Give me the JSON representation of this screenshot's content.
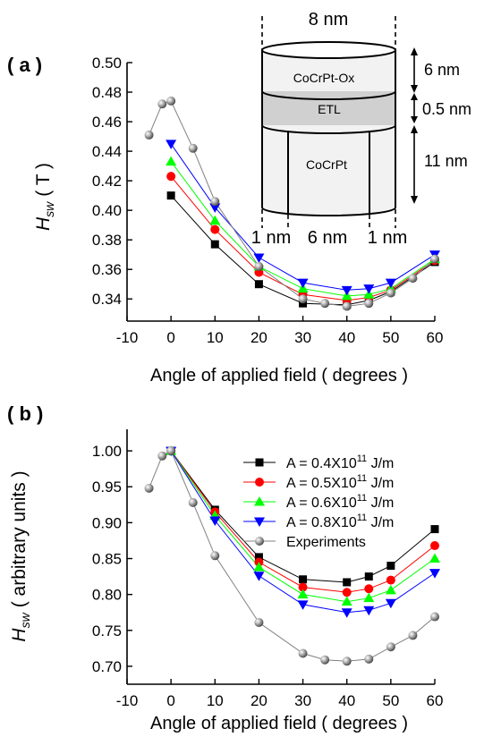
{
  "figure": {
    "panel_a_label": "( a )",
    "panel_b_label": "( b )"
  },
  "chart_data": [
    {
      "id": "a",
      "type": "line",
      "panel_label": "( a )",
      "ylabel_main": "H",
      "ylabel_sub": "sw",
      "ylabel_unit": "( T )",
      "xlabel": "Angle of applied field ( degrees )",
      "xlim": [
        -10,
        60
      ],
      "ylim": [
        0.325,
        0.5
      ],
      "xticks": [
        -10,
        0,
        10,
        20,
        30,
        40,
        50,
        60
      ],
      "yticks": [
        0.34,
        0.36,
        0.38,
        0.4,
        0.42,
        0.44,
        0.46,
        0.48,
        0.5
      ],
      "ytick_labels": [
        "0.34",
        "0.36",
        "0.38",
        "0.40",
        "0.42",
        "0.44",
        "0.46",
        "0.48",
        "0.50"
      ],
      "series": [
        {
          "marker": "square",
          "color": "#000000",
          "x": [
            0,
            10,
            20,
            30,
            40,
            45,
            50,
            60
          ],
          "y": [
            0.41,
            0.377,
            0.35,
            0.337,
            0.336,
            0.339,
            0.345,
            0.365
          ]
        },
        {
          "marker": "circle",
          "color": "#ff0000",
          "x": [
            0,
            10,
            20,
            30,
            40,
            45,
            50,
            60
          ],
          "y": [
            0.423,
            0.387,
            0.358,
            0.343,
            0.339,
            0.341,
            0.346,
            0.366
          ]
        },
        {
          "marker": "triangle-up",
          "color": "#00ff00",
          "x": [
            0,
            10,
            20,
            30,
            40,
            45,
            50,
            60
          ],
          "y": [
            0.433,
            0.393,
            0.362,
            0.347,
            0.342,
            0.343,
            0.347,
            0.367
          ]
        },
        {
          "marker": "triangle-down",
          "color": "#0000ff",
          "x": [
            0,
            10,
            20,
            30,
            40,
            45,
            50,
            60
          ],
          "y": [
            0.445,
            0.402,
            0.368,
            0.351,
            0.346,
            0.347,
            0.351,
            0.37
          ]
        },
        {
          "marker": "sphere",
          "color": "#808080",
          "x": [
            -5,
            -2,
            0,
            5,
            10,
            20,
            30,
            35,
            40,
            45,
            50,
            55,
            60
          ],
          "y": [
            0.451,
            0.472,
            0.474,
            0.442,
            0.406,
            0.362,
            0.34,
            0.337,
            0.335,
            0.337,
            0.344,
            0.354,
            0.367
          ]
        }
      ],
      "inset": {
        "top_label": "8 nm",
        "layer_top": "CoCrPt-Ox",
        "layer_mid": "ETL",
        "layer_bottom": "CoCrPt",
        "thickness_top": "6 nm",
        "thickness_mid": "0.5 nm",
        "thickness_bottom": "11 nm",
        "width_left": "1 nm",
        "width_center": "6 nm",
        "width_right": "1 nm",
        "fill_top": "#f2f2f2",
        "fill_mid": "#d0d0d0",
        "fill_bottom": "#f2f2f2"
      }
    },
    {
      "id": "b",
      "type": "line",
      "panel_label": "( b )",
      "ylabel_main": "H",
      "ylabel_sub": "sw",
      "ylabel_unit": "( arbitrary units )",
      "xlabel": "Angle of applied field ( degrees )",
      "xlim": [
        -10,
        60
      ],
      "ylim": [
        0.675,
        1.03
      ],
      "xticks": [
        -10,
        0,
        10,
        20,
        30,
        40,
        50,
        60
      ],
      "yticks": [
        0.7,
        0.75,
        0.8,
        0.85,
        0.9,
        0.95,
        1.0
      ],
      "ytick_labels": [
        "0.70",
        "0.75",
        "0.80",
        "0.85",
        "0.90",
        "0.95",
        "1.00"
      ],
      "legend_position": "top-right",
      "series": [
        {
          "name": "A = 0.4X10",
          "sup": "11",
          "unit": " J/m",
          "marker": "square",
          "color": "#000000",
          "x": [
            0,
            10,
            20,
            30,
            40,
            45,
            50,
            60
          ],
          "y": [
            1.0,
            0.918,
            0.852,
            0.821,
            0.817,
            0.825,
            0.84,
            0.891
          ]
        },
        {
          "name": "A = 0.5X10",
          "sup": "11",
          "unit": " J/m",
          "marker": "circle",
          "color": "#ff0000",
          "x": [
            0,
            10,
            20,
            30,
            40,
            45,
            50,
            60
          ],
          "y": [
            1.0,
            0.915,
            0.845,
            0.81,
            0.803,
            0.808,
            0.82,
            0.868
          ]
        },
        {
          "name": "A = 0.6X10",
          "sup": "11",
          "unit": " J/m",
          "marker": "triangle-up",
          "color": "#00ff00",
          "x": [
            0,
            10,
            20,
            30,
            40,
            45,
            50,
            60
          ],
          "y": [
            1.0,
            0.91,
            0.838,
            0.8,
            0.79,
            0.795,
            0.806,
            0.85
          ]
        },
        {
          "name": "A = 0.8X10",
          "sup": "11",
          "unit": " J/m",
          "marker": "triangle-down",
          "color": "#0000ff",
          "x": [
            0,
            10,
            20,
            30,
            40,
            45,
            50,
            60
          ],
          "y": [
            1.0,
            0.903,
            0.826,
            0.786,
            0.775,
            0.778,
            0.788,
            0.83
          ]
        },
        {
          "name": "Experiments",
          "sup": "",
          "unit": "",
          "marker": "sphere",
          "color": "#808080",
          "x": [
            -5,
            -2,
            0,
            5,
            10,
            20,
            30,
            35,
            40,
            45,
            50,
            55,
            60
          ],
          "y": [
            0.948,
            0.993,
            1.0,
            0.928,
            0.854,
            0.761,
            0.718,
            0.709,
            0.707,
            0.71,
            0.727,
            0.743,
            0.769
          ]
        }
      ]
    }
  ]
}
